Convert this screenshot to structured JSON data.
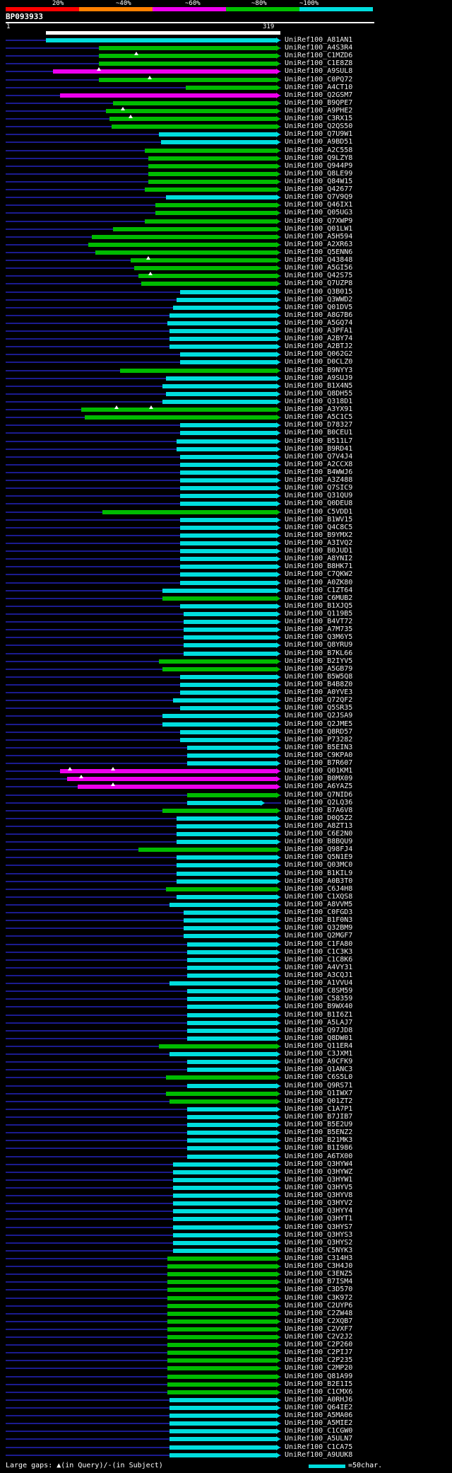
{
  "header": {
    "query_id": "BP093933",
    "ruler_start": "1",
    "ruler_end": "319"
  },
  "scale": {
    "segments": [
      {
        "label": "20%",
        "color": "#ff0000"
      },
      {
        "label": "~40%",
        "color": "#ff8000"
      },
      {
        "label": "~60%",
        "color": "#ee00ee"
      },
      {
        "label": "~80%",
        "color": "#00c000"
      },
      {
        "label": "~100%",
        "color": "#00dddd"
      }
    ]
  },
  "legend": {
    "large_gaps_text": "Large gaps: ▲(in Query)/-(in Subject)",
    "unit_text": "=50char."
  },
  "palette": {
    "identity": {
      "100": "#00dddd",
      "80": "#00bb00",
      "60": "#ee00ee"
    },
    "baseline": "#1b1b8f",
    "query_bar": "#ffffff",
    "background": "#000000",
    "label_text": "#efefef",
    "legend_unit_bar": "#00dddd"
  },
  "chart_data": {
    "type": "bar",
    "title": "BP093933",
    "xlabel": "query position (residues)",
    "xlim": [
      1,
      319
    ],
    "identity_legend": [
      "20%",
      "~40%",
      "~60%",
      "~80%",
      "~100%"
    ],
    "row_format": [
      "label",
      "query_start",
      "query_end",
      "identity_bucket",
      "query_gap_positions"
    ],
    "rows": [
      [
        "UniRef100_A81AN1",
        1,
        319,
        100
      ],
      [
        "UniRef100_A4S3R4",
        73,
        319,
        80
      ],
      [
        "UniRef100_C1MZD6",
        73,
        319,
        80,
        [
          124
        ]
      ],
      [
        "UniRef100_C1E8Z8",
        73,
        319,
        80
      ],
      [
        "UniRef100_A9SUL8",
        11,
        319,
        60,
        [
          73
        ]
      ],
      [
        "UniRef100_C0PQ72",
        73,
        319,
        80,
        [
          142
        ]
      ],
      [
        "UniRef100_A4CT10",
        191,
        319,
        80
      ],
      [
        "UniRef100_Q2GSM7",
        20,
        319,
        60
      ],
      [
        "UniRef100_B9QPE7",
        92,
        319,
        80
      ],
      [
        "UniRef100_A9PHE2",
        82,
        319,
        80,
        [
          105
        ]
      ],
      [
        "UniRef100_C3RX15",
        87,
        319,
        80,
        [
          116
        ]
      ],
      [
        "UniRef100_Q2QS50",
        90,
        319,
        80
      ],
      [
        "UniRef100_Q7U9W1",
        154,
        319,
        100
      ],
      [
        "UniRef100_A9BD51",
        157,
        319,
        100
      ],
      [
        "UniRef100_A2C558",
        135,
        319,
        80
      ],
      [
        "UniRef100_Q9LZY8",
        140,
        319,
        80
      ],
      [
        "UniRef100_Q944P9",
        140,
        319,
        80
      ],
      [
        "UniRef100_Q8LE99",
        140,
        319,
        80
      ],
      [
        "UniRef100_Q84W15",
        140,
        319,
        80
      ],
      [
        "UniRef100_Q42677",
        135,
        319,
        80
      ],
      [
        "UniRef100_Q7V9Q9",
        164,
        319,
        100
      ],
      [
        "UniRef100_Q46IX1",
        149,
        319,
        80
      ],
      [
        "UniRef100_Q05UG3",
        149,
        319,
        80
      ],
      [
        "UniRef100_Q7XWP9",
        135,
        319,
        80
      ],
      [
        "UniRef100_Q01LW1",
        92,
        319,
        80
      ],
      [
        "UniRef100_A5H594",
        63,
        319,
        80
      ],
      [
        "UniRef100_A2XR63",
        58,
        319,
        80
      ],
      [
        "UniRef100_Q5ENN6",
        68,
        319,
        80
      ],
      [
        "UniRef100_Q43848",
        116,
        319,
        80,
        [
          140
        ]
      ],
      [
        "UniRef100_A5GI56",
        121,
        319,
        80
      ],
      [
        "UniRef100_Q42S75",
        126,
        319,
        80,
        [
          143
        ]
      ],
      [
        "UniRef100_Q7UZP8",
        130,
        319,
        80
      ],
      [
        "UniRef100_Q3B015",
        183,
        319,
        100
      ],
      [
        "UniRef100_Q3WWD2",
        178,
        319,
        100
      ],
      [
        "UniRef100_Q01DV5",
        173,
        319,
        100
      ],
      [
        "UniRef100_A8G7B6",
        169,
        319,
        100
      ],
      [
        "UniRef100_A5GQ74",
        166,
        319,
        100
      ],
      [
        "UniRef100_A3PFA1",
        169,
        319,
        100
      ],
      [
        "UniRef100_A2BY74",
        169,
        319,
        100
      ],
      [
        "UniRef100_A2BTJ2",
        169,
        319,
        100
      ],
      [
        "UniRef100_Q062G2",
        183,
        319,
        100
      ],
      [
        "UniRef100_D0CLZ0",
        183,
        319,
        100
      ],
      [
        "UniRef100_B9NYY3",
        102,
        319,
        80
      ],
      [
        "UniRef100_A9SUJ9",
        164,
        319,
        100
      ],
      [
        "UniRef100_B1X4N5",
        159,
        319,
        100
      ],
      [
        "UniRef100_Q8DH55",
        164,
        319,
        100
      ],
      [
        "UniRef100_Q318D1",
        159,
        319,
        100
      ],
      [
        "UniRef100_A3YX91",
        49,
        319,
        80,
        [
          97,
          144
        ]
      ],
      [
        "UniRef100_A5C1C5",
        54,
        319,
        80
      ],
      [
        "UniRef100_D78327",
        183,
        319,
        100
      ],
      [
        "UniRef100_B0CEU1",
        183,
        319,
        100
      ],
      [
        "UniRef100_B511L7",
        178,
        319,
        100
      ],
      [
        "UniRef100_B9RD41",
        178,
        319,
        100
      ],
      [
        "UniRef100_Q7V4J4",
        183,
        319,
        100
      ],
      [
        "UniRef100_A2CCX8",
        183,
        319,
        100
      ],
      [
        "UniRef100_B4WWJ6",
        183,
        319,
        100
      ],
      [
        "UniRef100_A3Z488",
        183,
        319,
        100
      ],
      [
        "UniRef100_Q7SIC9",
        183,
        319,
        100
      ],
      [
        "UniRef100_Q31QU9",
        183,
        319,
        100
      ],
      [
        "UniRef100_Q0DEU8",
        183,
        319,
        100
      ],
      [
        "UniRef100_C5VDD1",
        78,
        319,
        80
      ],
      [
        "UniRef100_B1WV15",
        183,
        319,
        100
      ],
      [
        "UniRef100_Q4C8C5",
        183,
        319,
        100
      ],
      [
        "UniRef100_B9YMX2",
        183,
        319,
        100
      ],
      [
        "UniRef100_A3IVQ2",
        183,
        319,
        100
      ],
      [
        "UniRef100_B0JUD1",
        183,
        319,
        100
      ],
      [
        "UniRef100_A8YNI2",
        183,
        319,
        100
      ],
      [
        "UniRef100_B8HK71",
        183,
        319,
        100
      ],
      [
        "UniRef100_C7QKW2",
        183,
        319,
        100
      ],
      [
        "UniRef100_A0ZK80",
        183,
        319,
        100
      ],
      [
        "UniRef100_C1ZT64",
        159,
        319,
        100
      ],
      [
        "UniRef100_C6MUB2",
        159,
        319,
        80
      ],
      [
        "UniRef100_B1XJQ5",
        183,
        319,
        100
      ],
      [
        "UniRef100_Q119B5",
        188,
        319,
        100
      ],
      [
        "UniRef100_B4VT72",
        188,
        319,
        100
      ],
      [
        "UniRef100_A7M735",
        188,
        319,
        100
      ],
      [
        "UniRef100_Q3M6Y5",
        188,
        319,
        100
      ],
      [
        "UniRef100_Q8YRU9",
        188,
        319,
        100
      ],
      [
        "UniRef100_B7KL66",
        188,
        319,
        100
      ],
      [
        "UniRef100_B2IYV5",
        154,
        319,
        80
      ],
      [
        "UniRef100_A5GB79",
        159,
        319,
        80
      ],
      [
        "UniRef100_B5W5Q8",
        183,
        319,
        100
      ],
      [
        "UniRef100_B4B8Z0",
        183,
        319,
        100
      ],
      [
        "UniRef100_A0YVE3",
        183,
        319,
        100
      ],
      [
        "UniRef100_Q72QF2",
        173,
        319,
        100
      ],
      [
        "UniRef100_Q5SR35",
        183,
        319,
        100
      ],
      [
        "UniRef100_Q2JSA9",
        159,
        319,
        100
      ],
      [
        "UniRef100_Q2JME5",
        159,
        319,
        100
      ],
      [
        "UniRef100_Q8RD57",
        183,
        319,
        100
      ],
      [
        "UniRef100_P73282",
        183,
        319,
        100
      ],
      [
        "UniRef100_B5EIN3",
        193,
        319,
        100
      ],
      [
        "UniRef100_C9KPA0",
        193,
        319,
        100
      ],
      [
        "UniRef100_B7R607",
        193,
        319,
        100
      ],
      [
        "UniRef100_Q01KM1",
        20,
        319,
        60,
        [
          34,
          92
        ]
      ],
      [
        "UniRef100_B0MX09",
        30,
        319,
        60,
        [
          49
        ]
      ],
      [
        "UniRef100_A6YAZ5",
        44,
        319,
        60,
        [
          92
        ]
      ],
      [
        "UniRef100_Q7NID6",
        193,
        319,
        80
      ],
      [
        "UniRef100_Q2LQ36",
        193,
        298,
        100
      ],
      [
        "UniRef100_B7A6V8",
        159,
        319,
        80
      ],
      [
        "UniRef100_D0Q5Z2",
        178,
        319,
        100
      ],
      [
        "UniRef100_A8ZT13",
        178,
        319,
        100
      ],
      [
        "UniRef100_C6E2N0",
        178,
        319,
        100
      ],
      [
        "UniRef100_B8BQU9",
        178,
        319,
        100
      ],
      [
        "UniRef100_Q98FJ4",
        126,
        319,
        80
      ],
      [
        "UniRef100_Q5N1E9",
        178,
        319,
        100
      ],
      [
        "UniRef100_Q03MC0",
        178,
        319,
        100
      ],
      [
        "UniRef100_B1KIL9",
        178,
        319,
        100
      ],
      [
        "UniRef100_A0B3T0",
        178,
        319,
        100
      ],
      [
        "UniRef100_C6J4H8",
        164,
        319,
        80
      ],
      [
        "UniRef100_C1XQS8",
        178,
        319,
        100
      ],
      [
        "UniRef100_A8VVM5",
        169,
        319,
        100
      ],
      [
        "UniRef100_C0FGD3",
        188,
        319,
        100
      ],
      [
        "UniRef100_B1F0N3",
        188,
        319,
        100
      ],
      [
        "UniRef100_Q32BM9",
        188,
        319,
        100
      ],
      [
        "UniRef100_Q2MGF7",
        188,
        319,
        100
      ],
      [
        "UniRef100_C1FA80",
        193,
        319,
        100
      ],
      [
        "UniRef100_C1C3K3",
        193,
        319,
        100
      ],
      [
        "UniRef100_C1C8K6",
        193,
        319,
        100
      ],
      [
        "UniRef100_A4VY31",
        193,
        319,
        100
      ],
      [
        "UniRef100_A3CQJ1",
        193,
        319,
        100
      ],
      [
        "UniRef100_A1VVU4",
        169,
        319,
        100
      ],
      [
        "UniRef100_C8SM59",
        193,
        319,
        100
      ],
      [
        "UniRef100_C58359",
        193,
        319,
        100
      ],
      [
        "UniRef100_B9WX40",
        193,
        319,
        100
      ],
      [
        "UniRef100_B1I6Z1",
        193,
        319,
        100
      ],
      [
        "UniRef100_A5LAJ7",
        193,
        319,
        100
      ],
      [
        "UniRef100_Q97JD8",
        193,
        319,
        100
      ],
      [
        "UniRef100_Q8DW01",
        193,
        319,
        100
      ],
      [
        "UniRef100_Q11ER4",
        154,
        319,
        80
      ],
      [
        "UniRef100_C3JXM1",
        169,
        319,
        100
      ],
      [
        "UniRef100_A9CFK9",
        193,
        319,
        100
      ],
      [
        "UniRef100_Q1ANC3",
        193,
        319,
        100
      ],
      [
        "UniRef100_C6S5L0",
        164,
        319,
        80
      ],
      [
        "UniRef100_Q9RS71",
        193,
        319,
        100
      ],
      [
        "UniRef100_Q1IWX7",
        164,
        319,
        80
      ],
      [
        "UniRef100_Q01ZT2",
        169,
        319,
        80
      ],
      [
        "UniRef100_C1A7P1",
        193,
        319,
        100
      ],
      [
        "UniRef100_B7JIB7",
        193,
        319,
        100
      ],
      [
        "UniRef100_B5E2U9",
        193,
        319,
        100
      ],
      [
        "UniRef100_B5ENZ2",
        193,
        319,
        100
      ],
      [
        "UniRef100_B21MK3",
        193,
        319,
        100
      ],
      [
        "UniRef100_B1I986",
        193,
        319,
        100
      ],
      [
        "UniRef100_A6TX00",
        193,
        319,
        100
      ],
      [
        "UniRef100_Q3HYW4",
        173,
        319,
        100
      ],
      [
        "UniRef100_Q3HYWZ",
        173,
        319,
        100
      ],
      [
        "UniRef100_Q3HYW1",
        173,
        319,
        100
      ],
      [
        "UniRef100_Q3HYV5",
        173,
        319,
        100
      ],
      [
        "UniRef100_Q3HYV8",
        173,
        319,
        100
      ],
      [
        "UniRef100_Q3HYV2",
        173,
        319,
        100
      ],
      [
        "UniRef100_Q3HYY4",
        173,
        319,
        100
      ],
      [
        "UniRef100_Q3HYT1",
        173,
        319,
        100
      ],
      [
        "UniRef100_Q3HYS7",
        173,
        319,
        100
      ],
      [
        "UniRef100_Q3HYS3",
        173,
        319,
        100
      ],
      [
        "UniRef100_Q3HYS2",
        173,
        319,
        100
      ],
      [
        "UniRef100_C5NYK3",
        173,
        319,
        100
      ],
      [
        "UniRef100_C314H3",
        166,
        319,
        80
      ],
      [
        "UniRef100_C3H4J0",
        166,
        319,
        80
      ],
      [
        "UniRef100_C3ENZ5",
        166,
        319,
        80
      ],
      [
        "UniRef100_B7ISM4",
        166,
        319,
        80
      ],
      [
        "UniRef100_C3D570",
        166,
        319,
        80
      ],
      [
        "UniRef100_C3K972",
        166,
        319,
        80
      ],
      [
        "UniRef100_C2UYP6",
        166,
        319,
        80
      ],
      [
        "UniRef100_C2ZW48",
        166,
        319,
        80
      ],
      [
        "UniRef100_C2XQB7",
        166,
        319,
        80
      ],
      [
        "UniRef100_C2VXF7",
        166,
        319,
        80
      ],
      [
        "UniRef100_C2V2J2",
        166,
        319,
        80
      ],
      [
        "UniRef100_C2P260",
        166,
        319,
        80
      ],
      [
        "UniRef100_C2PIJ7",
        166,
        319,
        80
      ],
      [
        "UniRef100_C2P235",
        166,
        319,
        80
      ],
      [
        "UniRef100_C2MP20",
        166,
        319,
        80
      ],
      [
        "UniRef100_Q81A99",
        166,
        319,
        80
      ],
      [
        "UniRef100_B2E1I5",
        166,
        319,
        80
      ],
      [
        "UniRef100_C1CMX6",
        166,
        319,
        80
      ],
      [
        "UniRef100_A0RHJ6",
        169,
        319,
        100
      ],
      [
        "UniRef100_Q64IE2",
        169,
        319,
        100
      ],
      [
        "UniRef100_A5MA06",
        169,
        319,
        100
      ],
      [
        "UniRef100_A5MIE2",
        169,
        319,
        100
      ],
      [
        "UniRef100_C1CGW0",
        169,
        319,
        100
      ],
      [
        "UniRef100_A5ULN7",
        169,
        319,
        100
      ],
      [
        "UniRef100_C1CA75",
        169,
        319,
        100
      ],
      [
        "UniRef100_A9UUK8",
        169,
        319,
        100
      ]
    ]
  }
}
